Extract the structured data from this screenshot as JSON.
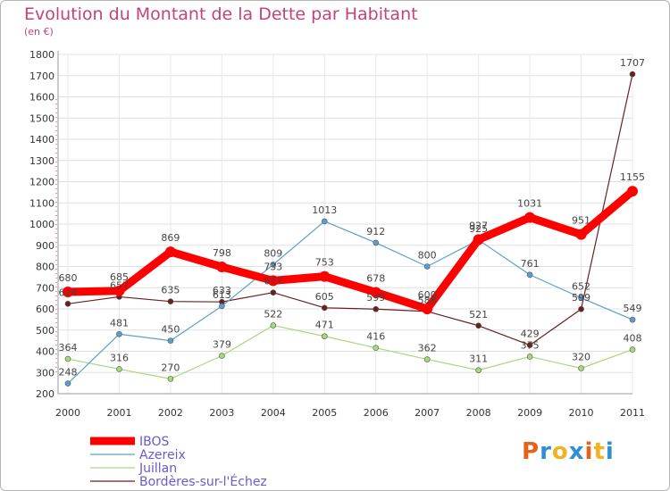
{
  "title": "Evolution du Montant de la Dette par Habitant",
  "subtitle": "(en €)",
  "brand": {
    "letters": [
      "P",
      "r",
      "o",
      "x",
      "i",
      "t",
      "i"
    ],
    "colors": [
      "#e8611a",
      "#2e8fd6",
      "#f0b323",
      "#2e8fd6",
      "#e8611a",
      "#f0b323",
      "#2e8fd6"
    ]
  },
  "chart_data": {
    "type": "line",
    "x": [
      "2000",
      "2001",
      "2002",
      "2003",
      "2004",
      "2005",
      "2006",
      "2007",
      "2008",
      "2009",
      "2010",
      "2011"
    ],
    "ylim": [
      200,
      1800
    ],
    "yticks": [
      200,
      300,
      400,
      500,
      600,
      700,
      800,
      900,
      1000,
      1100,
      1200,
      1300,
      1400,
      1500,
      1600,
      1700,
      1800
    ],
    "grid": true,
    "legend_position": "bottom-left",
    "series": [
      {
        "name": "Bordères-sur-l'Échez",
        "color": "#6b1f1f",
        "width": 1.2,
        "marker": 3,
        "values": [
          624,
          657,
          635,
          633,
          677,
          605,
          599,
          588,
          521,
          429,
          599,
          1707
        ]
      },
      {
        "name": "Juillan",
        "color": "#a5d97a",
        "width": 1.2,
        "marker": 3,
        "values": [
          364,
          316,
          270,
          379,
          522,
          471,
          416,
          362,
          311,
          375,
          320,
          408
        ]
      },
      {
        "name": "Azereix",
        "color": "#5b9fd2",
        "width": 1.2,
        "marker": 3,
        "values": [
          248,
          481,
          450,
          613,
          809,
          1013,
          912,
          800,
          925,
          761,
          652,
          549
        ]
      },
      {
        "name": "IBOS",
        "color": "#ff0000",
        "width": 9,
        "marker": 6,
        "values": [
          680,
          685,
          869,
          798,
          733,
          753,
          678,
          600,
          927,
          1031,
          951,
          1155
        ]
      }
    ],
    "legend_order": [
      "IBOS",
      "Azereix",
      "Juillan",
      "Bordères-sur-l'Échez"
    ]
  }
}
